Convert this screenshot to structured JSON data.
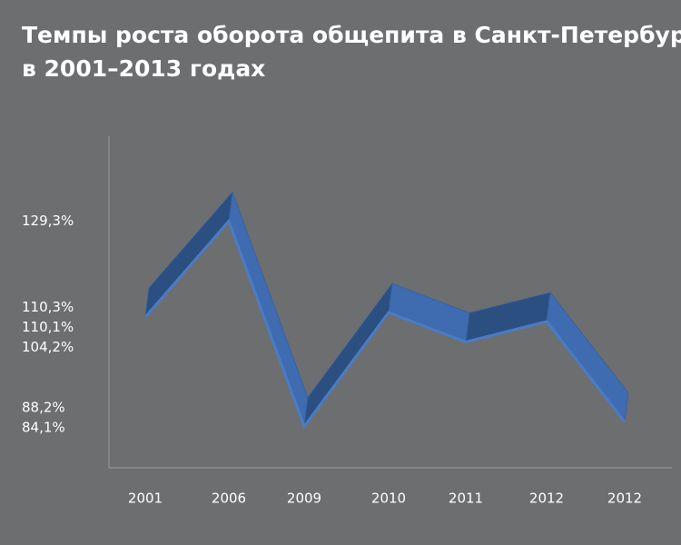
{
  "chart_data": {
    "type": "line3d",
    "title_lines": [
      "Темпы роста оборота общепита в Санкт-Петербурге",
      "в 2001–2013 годах"
    ],
    "categories": [
      "2001",
      "2006",
      "2009",
      "2010",
      "2011",
      "2012",
      "2012"
    ],
    "values": [
      108.2,
      129.3,
      84.1,
      109.2,
      102.7,
      107.2,
      85.1
    ],
    "color": "#3f6cb0",
    "ylim": [
      75,
      148
    ],
    "yticks": [
      {
        "value": 129.3,
        "label": "129,3%"
      },
      {
        "value": 110.3,
        "label": "110,3%"
      },
      {
        "value": 110.1,
        "label": "110,1%"
      },
      {
        "value": 104.2,
        "label": "104,2%"
      },
      {
        "value": 88.2,
        "label": "88,2%"
      },
      {
        "value": 84.1,
        "label": "84,1%"
      }
    ]
  }
}
